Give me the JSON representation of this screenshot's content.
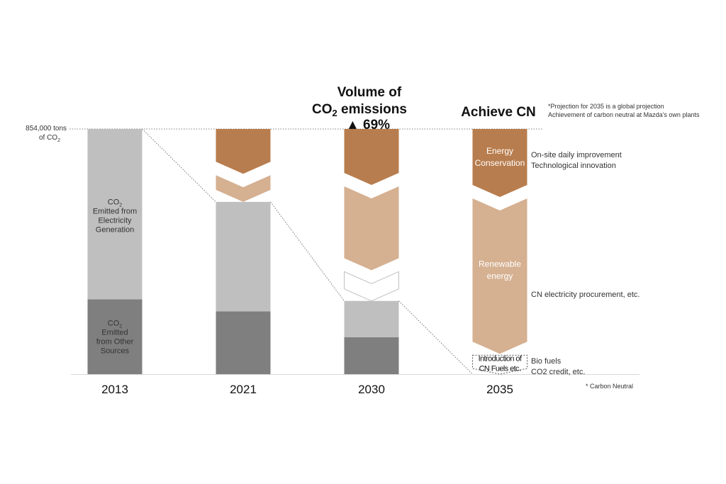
{
  "chart_data": {
    "type": "bar",
    "title_line1": "Volume of",
    "title_line2_main": "CO",
    "title_line2_sub": "2",
    "title_line2_rest": " emissions",
    "title_line3": "▲ 69%",
    "achieve_label": "Achieve CN",
    "top_note_line1": "*Projection for 2035 is a global projection",
    "top_note_line2": "Achievement of carbon neutral at Mazda’s own plants",
    "baseline_label_line1": "854,000 tons",
    "baseline_label_line2_main": "of CO",
    "baseline_label_line2_sub": "2",
    "baseline_value": 854000,
    "ylim": [
      0,
      854000
    ],
    "categories": [
      "2013",
      "2021",
      "2030",
      "2035"
    ],
    "series": [
      {
        "name": "CO2 Emitted from Other Sources",
        "label_lines": [
          "CO",
          "Emitted",
          "from Other",
          "Sources"
        ],
        "color": "#7f7f7f",
        "values": [
          261000,
          219000,
          129000,
          0
        ]
      },
      {
        "name": "CO2 Emitted from Electricity Generation",
        "label_lines": [
          "CO",
          "Emitted from",
          "Electricity",
          "Generation"
        ],
        "color": "#bfbfbf",
        "values": [
          593000,
          381000,
          126000,
          0
        ]
      }
    ],
    "reductions": [
      {
        "category": "2021",
        "kind": "energy",
        "amount": 156000
      },
      {
        "category": "2021",
        "kind": "renewable",
        "amount": 98000
      },
      {
        "category": "2030",
        "kind": "energy",
        "amount": 195000
      },
      {
        "category": "2030",
        "kind": "renewable",
        "amount": 297000
      },
      {
        "category": "2030",
        "kind": "outlined",
        "amount": 107000
      },
      {
        "category": "2035",
        "kind": "energy",
        "amount": 237000
      },
      {
        "category": "2035",
        "kind": "renewable",
        "amount": 546000
      },
      {
        "category": "2035",
        "kind": "fuels",
        "amount": 71000
      }
    ],
    "reduction_labels": {
      "energy": [
        "Energy",
        "Conservation"
      ],
      "renewable": [
        "Renewable",
        "energy"
      ],
      "fuels": [
        "Introduction of",
        "CN Fuels etc."
      ]
    },
    "measures": {
      "energy": [
        "On-site daily improvement",
        "Technological innovation"
      ],
      "renewable": [
        "CN electricity procurement, etc."
      ],
      "fuels": [
        "Bio fuels",
        "CO2 credit, etc."
      ]
    },
    "footnote": "* Carbon Neutral",
    "colors": {
      "energy": "#b87d4e",
      "renewable": "#d5b091",
      "outlined_stroke": "#bfbfbf",
      "axis": "#d9d9d9",
      "text": "#333333",
      "title": "#111111"
    }
  }
}
